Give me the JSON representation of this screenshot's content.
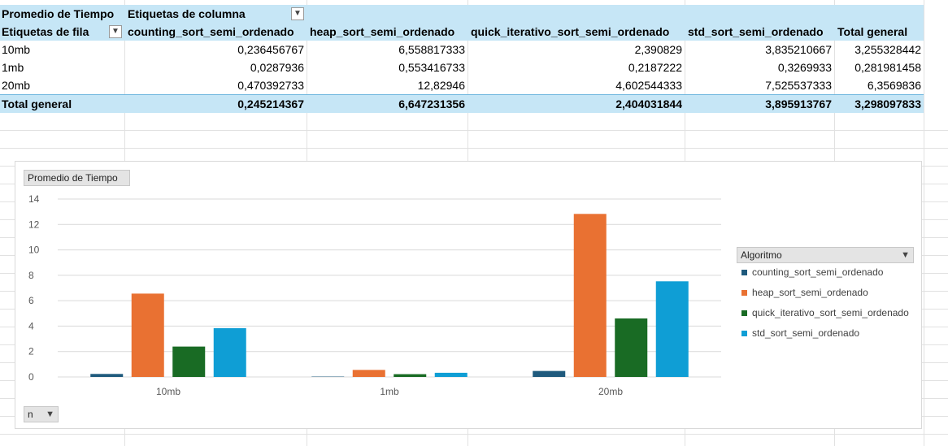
{
  "pivot": {
    "value_field": "Promedio de Tiempo",
    "column_labels": "Etiquetas de columna",
    "row_labels": "Etiquetas de fila",
    "columns": [
      "counting_sort_semi_ordenado",
      "heap_sort_semi_ordenado",
      "quick_iterativo_sort_semi_ordenado",
      "std_sort_semi_ordenado",
      "Total general"
    ],
    "rows": [
      {
        "label": "10mb",
        "values": [
          "0,236456767",
          "6,558817333",
          "2,390829",
          "3,835210667",
          "3,255328442"
        ]
      },
      {
        "label": "1mb",
        "values": [
          "0,0287936",
          "0,553416733",
          "0,2187222",
          "0,3269933",
          "0,281981458"
        ]
      },
      {
        "label": "20mb",
        "values": [
          "0,470392733",
          "12,82946",
          "4,602544333",
          "7,525537333",
          "6,3569836"
        ]
      }
    ],
    "total": {
      "label": "Total general",
      "values": [
        "0,245214367",
        "6,647231356",
        "2,404031844",
        "3,895913767",
        "3,298097833"
      ]
    }
  },
  "chart_ui": {
    "value_button": "Promedio de Tiempo",
    "legend_button": "Algoritmo",
    "axis_button": "n"
  },
  "chart_data": {
    "type": "bar",
    "categories": [
      "10mb",
      "1mb",
      "20mb"
    ],
    "series": [
      {
        "name": "counting_sort_semi_ordenado",
        "color": "#1f5a7d",
        "values": [
          0.236456767,
          0.0287936,
          0.470392733
        ]
      },
      {
        "name": "heap_sort_semi_ordenado",
        "color": "#e97132",
        "values": [
          6.558817333,
          0.553416733,
          12.82946
        ]
      },
      {
        "name": "quick_iterativo_sort_semi_ordenado",
        "color": "#196b24",
        "values": [
          2.390829,
          0.2187222,
          4.602544333
        ]
      },
      {
        "name": "std_sort_semi_ordenado",
        "color": "#0f9ed5",
        "values": [
          3.835210667,
          0.3269933,
          7.525537333
        ]
      }
    ],
    "ylim": [
      0,
      14
    ],
    "yticks": [
      "0",
      "2",
      "4",
      "6",
      "8",
      "10",
      "12",
      "14"
    ],
    "grid": true,
    "legend": "right"
  }
}
